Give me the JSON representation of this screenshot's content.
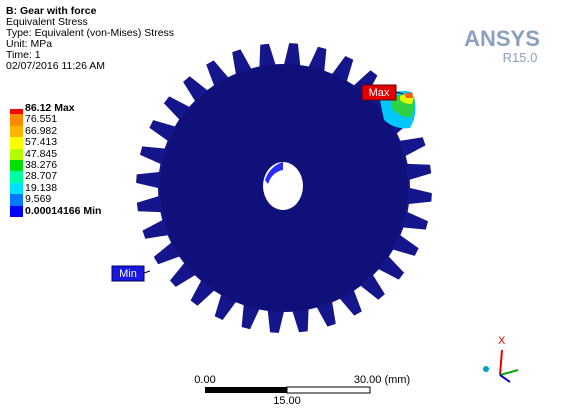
{
  "header": {
    "title": "B: Gear with force",
    "result": "Equivalent Stress",
    "type": "Type: Equivalent (von-Mises) Stress",
    "unit": "Unit: MPa",
    "time": "Time: 1",
    "date": "02/07/2016 11:26 AM"
  },
  "legend": {
    "levels": [
      {
        "label": "86.12 Max",
        "color": "#ff0000"
      },
      {
        "label": "76.551",
        "color": "#ff8c00"
      },
      {
        "label": "66.982",
        "color": "#ffb400"
      },
      {
        "label": "57.413",
        "color": "#ffff00"
      },
      {
        "label": "47.845",
        "color": "#b4ff00"
      },
      {
        "label": "38.276",
        "color": "#00e000"
      },
      {
        "label": "28.707",
        "color": "#00ffa0"
      },
      {
        "label": "19.138",
        "color": "#00e0ff"
      },
      {
        "label": "9.569",
        "color": "#0078ff"
      },
      {
        "label": "0.00014166 Min",
        "color": "#0000ff"
      }
    ]
  },
  "probes": {
    "max": "Max",
    "min": "Min"
  },
  "logo": {
    "name": "ANSYS",
    "version": "R15.0"
  },
  "scale": {
    "start": "0.00",
    "end": "30.00 (mm)",
    "mid": "15.00"
  },
  "triad": {
    "x": "X"
  }
}
